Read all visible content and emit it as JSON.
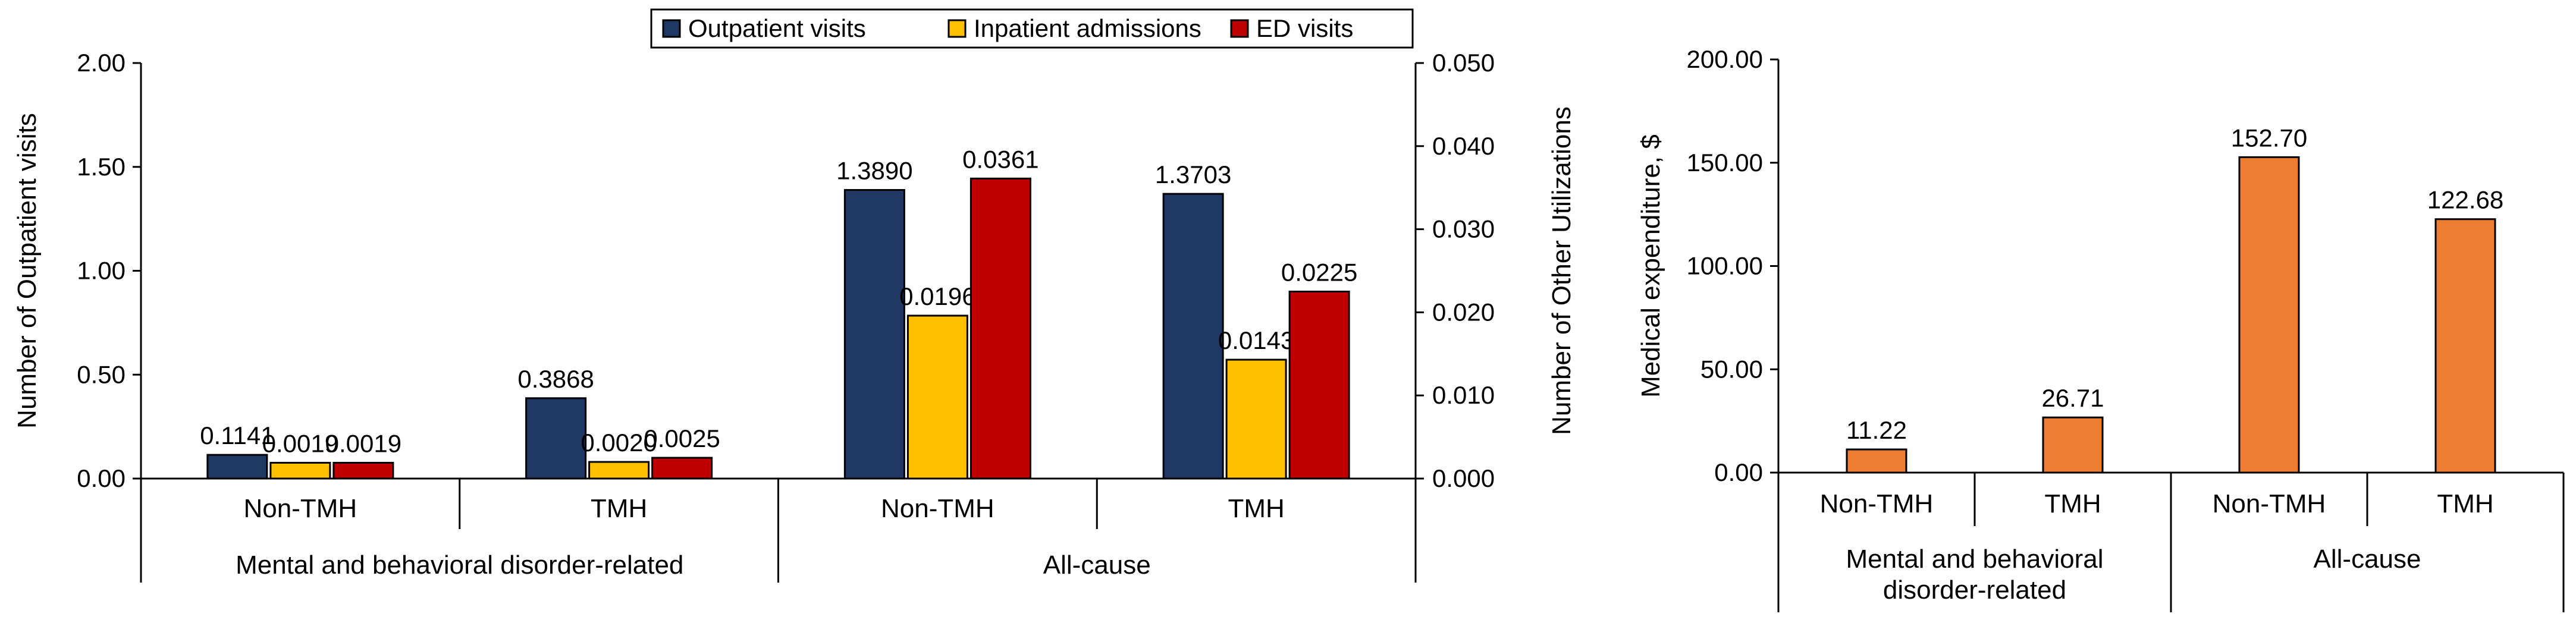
{
  "chart_data": [
    {
      "type": "bar",
      "title": "",
      "ylabel_left": "Number of Outpatient visits",
      "ylabel_right": "Number of Other Utilizations",
      "ylim_left": [
        0,
        2
      ],
      "ylim_right": [
        0,
        0.05
      ],
      "yticks_left": [
        "0.00",
        "0.50",
        "1.00",
        "1.50",
        "2.00"
      ],
      "yticks_right": [
        "0.000",
        "0.010",
        "0.020",
        "0.030",
        "0.040",
        "0.050"
      ],
      "groups": [
        "Mental and behavioral disorder-related",
        "All-cause"
      ],
      "categories": [
        "Non-TMH",
        "TMH",
        "Non-TMH",
        "TMH"
      ],
      "legend": {
        "position": "top-right"
      },
      "series": [
        {
          "name": "Outpatient visits",
          "axis": "left",
          "color": "#1f3864",
          "values": [
            0.1141,
            0.3868,
            1.389,
            1.3703
          ],
          "labels": [
            "0.1141",
            "0.3868",
            "1.3890",
            "1.3703"
          ]
        },
        {
          "name": "Inpatient admissions",
          "axis": "right",
          "color": "#ffc000",
          "values": [
            0.0019,
            0.002,
            0.0196,
            0.0143
          ],
          "labels": [
            "0.0019",
            "0.0020",
            "0.0196",
            "0.0143"
          ]
        },
        {
          "name": "ED visits",
          "axis": "right",
          "color": "#c00000",
          "values": [
            0.0019,
            0.0025,
            0.0361,
            0.0225
          ],
          "labels": [
            "0.0019",
            "0.0025",
            "0.0361",
            "0.0225"
          ]
        }
      ]
    },
    {
      "type": "bar",
      "title": "",
      "ylabel": "Medical expenditure, $",
      "ylim": [
        0,
        200
      ],
      "yticks": [
        "0.00",
        "50.00",
        "100.00",
        "150.00",
        "200.00"
      ],
      "groups": [
        "Mental and behavioral disorder-related",
        "All-cause"
      ],
      "categories": [
        "Non-TMH",
        "TMH",
        "Non-TMH",
        "TMH"
      ],
      "series": [
        {
          "name": "Medical expenditure",
          "color": "#ed7d31",
          "values": [
            11.22,
            26.71,
            152.7,
            122.68
          ],
          "labels": [
            "11.22",
            "26.71",
            "152.70",
            "122.68"
          ]
        }
      ]
    }
  ]
}
